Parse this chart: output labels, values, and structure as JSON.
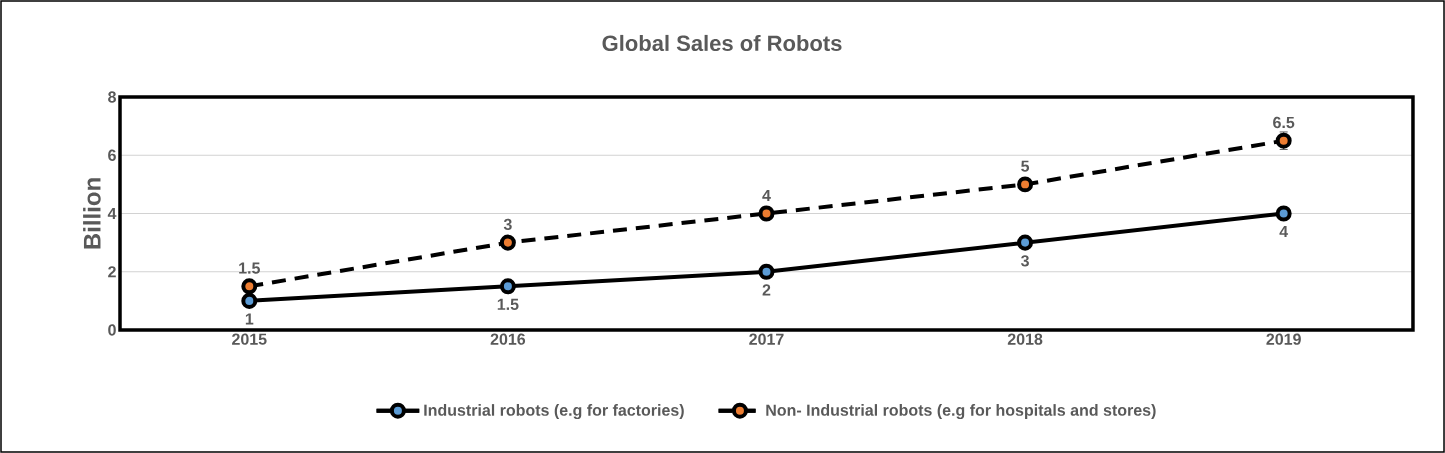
{
  "chart_data": {
    "type": "line",
    "title": "Global Sales of Robots",
    "ylabel": "Billion",
    "categories": [
      "2015",
      "2016",
      "2017",
      "2018",
      "2019"
    ],
    "series": [
      {
        "name": "Industrial robots (e.g for factories)",
        "color": "#5b9bd5",
        "line_style": "solid",
        "values": [
          1,
          1.5,
          2,
          3,
          4
        ],
        "errors": [
          null,
          null,
          null,
          null,
          0.1
        ]
      },
      {
        "name": "Non- Industrial robots (e.g for hospitals and stores)",
        "color": "#ed7d31",
        "line_style": "dashed",
        "values": [
          1.5,
          3,
          4,
          5,
          6.5
        ],
        "errors": [
          null,
          null,
          0.1,
          0.2,
          0.3
        ]
      }
    ],
    "ylim": [
      0,
      8
    ],
    "yticks": [
      0,
      2,
      4,
      6,
      8
    ],
    "grid": "y",
    "legend": "bottom",
    "marker": "circle",
    "data_labels": true
  }
}
